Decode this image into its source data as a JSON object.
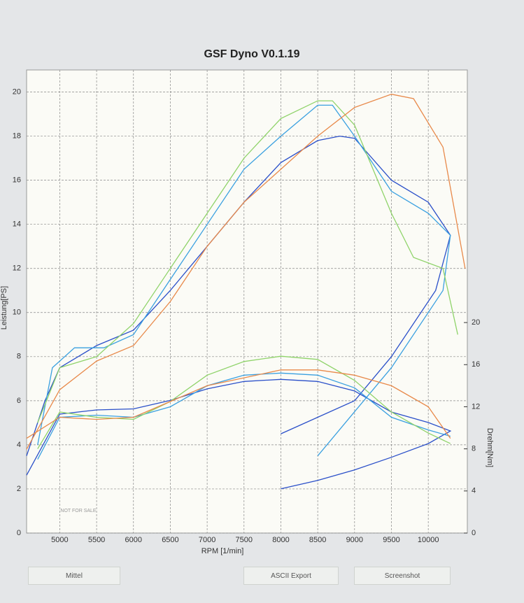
{
  "chart_data": {
    "type": "line",
    "title": "GSF Dyno V0.1.19",
    "xlabel": "RPM [1/min]",
    "ylabel": "Leistung[PS]",
    "y2label": "Drehm[Nm]",
    "annotation": "NOT FOR SALE",
    "xlim": [
      4550,
      10530
    ],
    "xticks": [
      5000,
      5500,
      6000,
      6500,
      7000,
      7500,
      8000,
      8500,
      9000,
      9500,
      10000
    ],
    "ylim": [
      0,
      21
    ],
    "yticks": [
      0,
      2,
      4,
      6,
      8,
      10,
      12,
      14,
      16,
      18,
      20
    ],
    "y2lim": [
      0,
      44
    ],
    "y2ticks": [
      0,
      4,
      8,
      12,
      16,
      20
    ],
    "grid": true,
    "series": [
      {
        "color": "#2a4fc9",
        "x": [
          4550,
          4800,
          5000,
          5500,
          6000,
          6500,
          7000,
          7500,
          8000,
          8500,
          8800,
          9000,
          9500,
          10000,
          10300,
          10100,
          9500,
          9000,
          8000
        ],
        "values": [
          3.5,
          6.0,
          7.5,
          8.5,
          9.2,
          11.0,
          13.0,
          15.0,
          16.8,
          17.8,
          18.0,
          17.9,
          16.0,
          15.0,
          13.5,
          11.0,
          8.0,
          6.0,
          4.5
        ]
      },
      {
        "color": "#3aa0e0",
        "x": [
          4700,
          4900,
          5200,
          5600,
          6000,
          6500,
          7000,
          7500,
          8000,
          8500,
          8700,
          9000,
          9500,
          10000,
          10300,
          10200,
          9500,
          9000,
          8500
        ],
        "values": [
          4.0,
          7.5,
          8.4,
          8.4,
          9.0,
          11.5,
          14.0,
          16.5,
          18.0,
          19.4,
          19.4,
          18.0,
          15.5,
          14.5,
          13.5,
          11.0,
          7.5,
          5.5,
          3.5
        ]
      },
      {
        "color": "#8fd36a",
        "x": [
          4700,
          5000,
          5500,
          6000,
          6500,
          7000,
          7500,
          8000,
          8500,
          8700,
          9000,
          9500,
          9800,
          10200,
          10400
        ],
        "values": [
          5.0,
          7.5,
          8.0,
          9.5,
          12.0,
          14.5,
          17.0,
          18.8,
          19.6,
          19.6,
          18.5,
          14.5,
          12.5,
          12.0,
          9.0
        ]
      },
      {
        "color": "#e8894a",
        "x": [
          4550,
          5000,
          5500,
          6000,
          6500,
          7000,
          7500,
          8000,
          8500,
          9000,
          9500,
          9800,
          10200,
          10500
        ],
        "values": [
          3.8,
          6.5,
          7.8,
          8.5,
          10.5,
          13.0,
          15.0,
          16.5,
          18.0,
          19.3,
          19.9,
          19.7,
          17.5,
          12.0
        ]
      },
      {
        "color": "#2a4fc9",
        "axis": "y2",
        "x": [
          4550,
          5000,
          5500,
          6000,
          6500,
          7000,
          7500,
          8000,
          8500,
          9000,
          9500,
          10000,
          10300,
          10000,
          9500,
          9000,
          8500,
          8000
        ],
        "values": [
          5.5,
          11.3,
          11.7,
          11.8,
          12.6,
          13.7,
          14.4,
          14.6,
          14.4,
          13.5,
          11.5,
          10.5,
          9.7,
          8.5,
          7.2,
          6.0,
          5.0,
          4.2
        ]
      },
      {
        "color": "#3aa0e0",
        "axis": "y2",
        "x": [
          4700,
          5000,
          5500,
          6000,
          6500,
          7000,
          7500,
          8000,
          8500,
          9000,
          9500,
          10000,
          10300
        ],
        "values": [
          7.0,
          11.0,
          11.2,
          11.0,
          12.0,
          14.0,
          15.0,
          15.2,
          15.0,
          13.8,
          11.0,
          9.8,
          9.2
        ]
      },
      {
        "color": "#8fd36a",
        "axis": "y2",
        "x": [
          4700,
          5000,
          5500,
          6000,
          6500,
          7000,
          7500,
          8000,
          8500,
          9000,
          9500,
          10000,
          10300
        ],
        "values": [
          8.0,
          11.5,
          11.0,
          10.8,
          12.5,
          15.0,
          16.3,
          16.8,
          16.5,
          14.5,
          11.5,
          9.5,
          8.5
        ]
      },
      {
        "color": "#e8894a",
        "axis": "y2",
        "x": [
          4550,
          5000,
          5500,
          6000,
          7000,
          8000,
          8500,
          9000,
          9500,
          10000,
          10300
        ],
        "values": [
          9.0,
          11.0,
          10.8,
          11.0,
          14.0,
          15.5,
          15.5,
          15.0,
          14.0,
          12.0,
          9.0
        ]
      }
    ]
  },
  "buttons": [
    "Mittel",
    "ASCII Export",
    "Screenshot"
  ]
}
